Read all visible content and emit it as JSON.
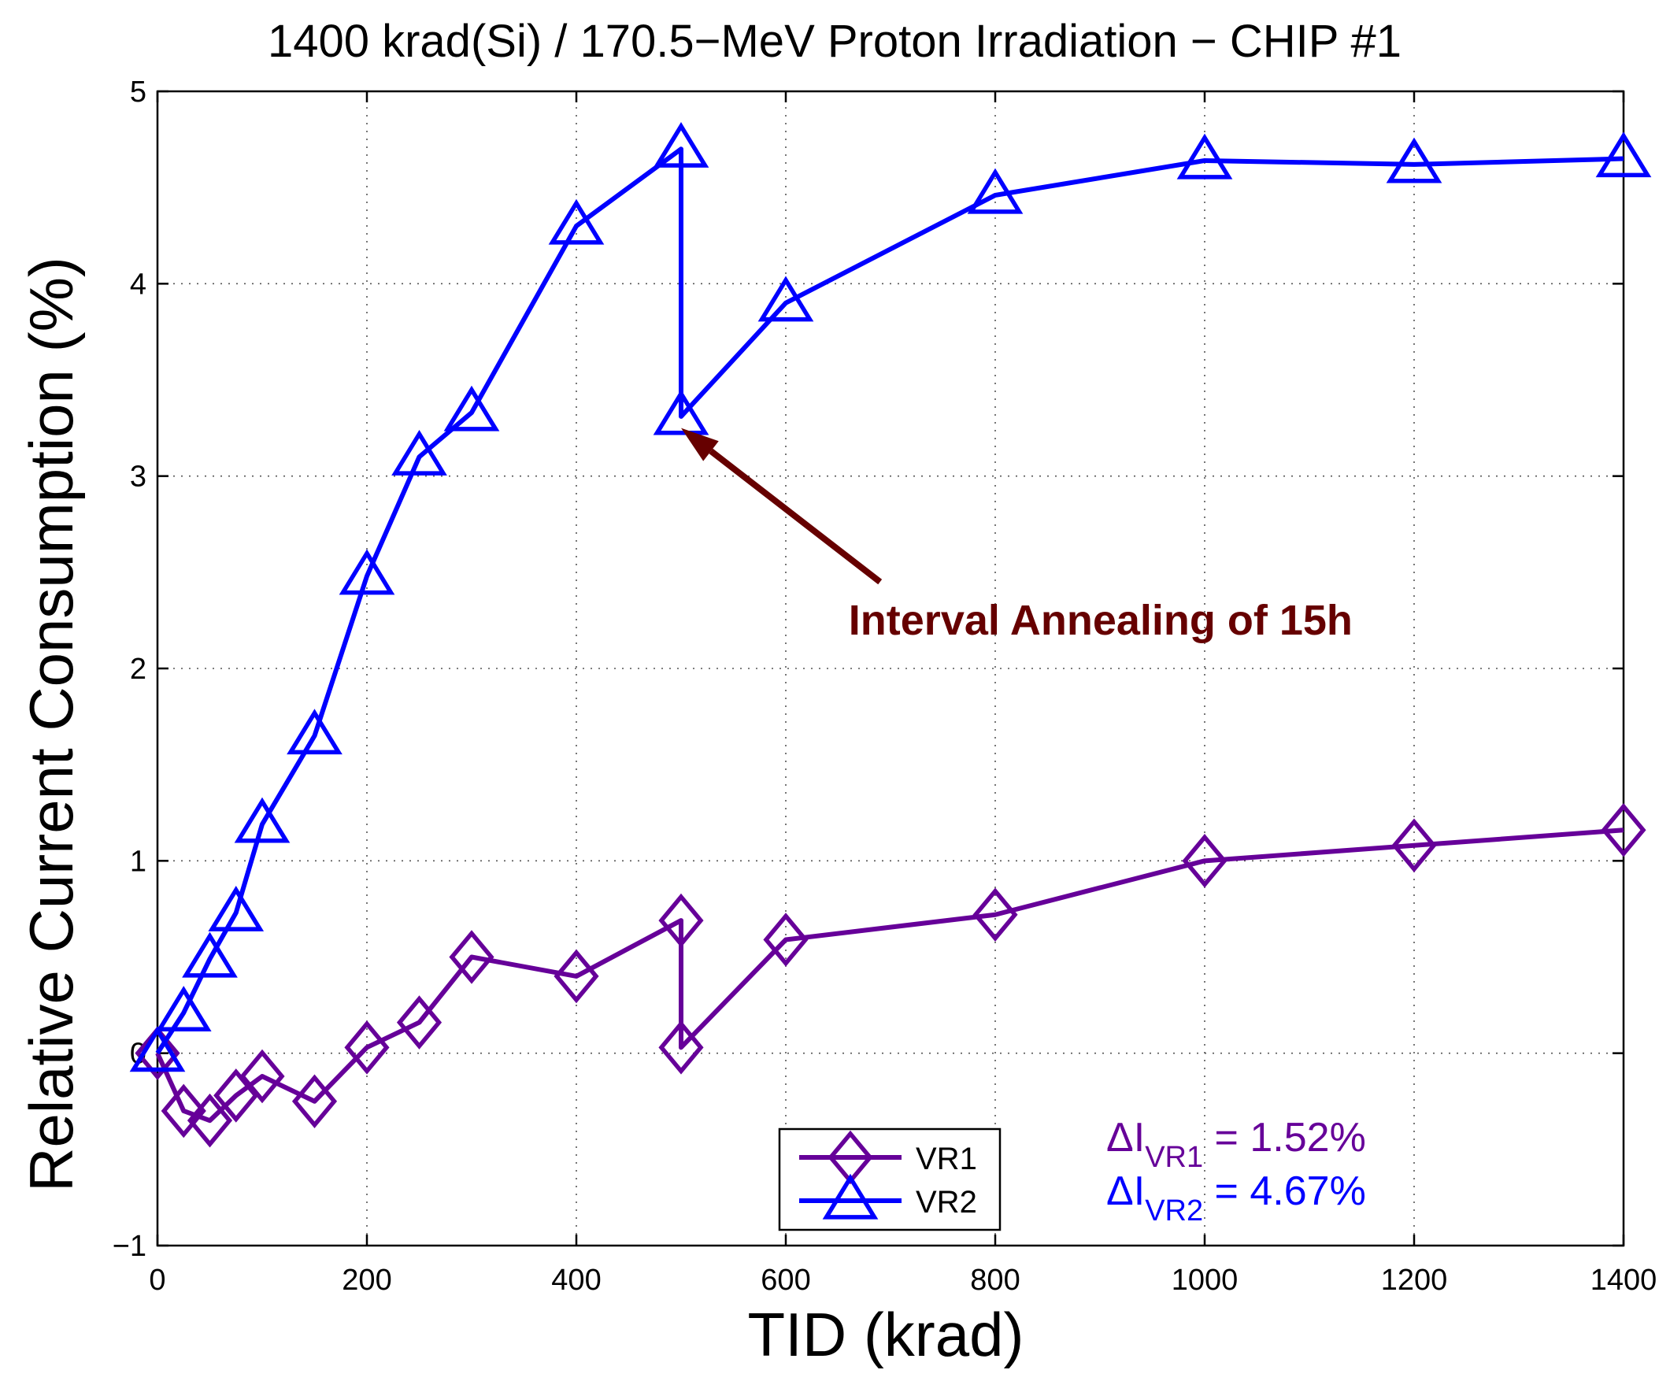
{
  "chart_data": {
    "type": "line",
    "title": "1400 krad(Si) / 170.5−MeV Proton Irradiation − CHIP #1",
    "xlabel": "TID (krad)",
    "ylabel": "Relative Current Consumption (%)",
    "xlim": [
      0,
      1400
    ],
    "ylim": [
      -1,
      5
    ],
    "xticks": [
      0,
      200,
      400,
      600,
      800,
      1000,
      1200,
      1400
    ],
    "yticks": [
      -1,
      0,
      1,
      2,
      3,
      4,
      5
    ],
    "xtick_labels": [
      "0",
      "200",
      "400",
      "600",
      "800",
      "1000",
      "1200",
      "1400"
    ],
    "ytick_labels": [
      "−1",
      "0",
      "1",
      "2",
      "3",
      "4",
      "5"
    ],
    "grid": true,
    "legend_position": "bottom-center",
    "series": [
      {
        "name": "VR1",
        "color": "#660099",
        "marker": "diamond",
        "x": [
          0,
          25,
          50,
          75,
          100,
          150,
          200,
          250,
          300,
          400,
          500,
          500,
          600,
          800,
          1000,
          1200,
          1400
        ],
        "y": [
          0,
          -0.3,
          -0.35,
          -0.22,
          -0.12,
          -0.25,
          0.03,
          0.16,
          0.5,
          0.4,
          0.69,
          0.03,
          0.59,
          0.72,
          1.0,
          1.08,
          1.16
        ]
      },
      {
        "name": "VR2",
        "color": "#0000ff",
        "marker": "triangle",
        "x": [
          0,
          25,
          50,
          75,
          100,
          150,
          200,
          250,
          300,
          400,
          500,
          500,
          600,
          800,
          1000,
          1200,
          1400
        ],
        "y": [
          0,
          0.21,
          0.49,
          0.73,
          1.19,
          1.65,
          2.48,
          3.1,
          3.33,
          4.3,
          4.7,
          3.31,
          3.9,
          4.46,
          4.64,
          4.62,
          4.65
        ]
      }
    ],
    "annotations": [
      {
        "text": "Interval Annealing of 15h",
        "color": "#660000",
        "text_at": [
          660,
          2.25
        ],
        "arrow_from": [
          690,
          2.45
        ],
        "arrow_to": [
          500,
          3.25
        ]
      }
    ],
    "delta_labels": [
      {
        "prefix": "ΔI",
        "subscript": "VR1",
        "value": " = 1.52%",
        "color": "#660099"
      },
      {
        "prefix": "ΔI",
        "subscript": "VR2",
        "value": " = 4.67%",
        "color": "#0000ff"
      }
    ]
  }
}
